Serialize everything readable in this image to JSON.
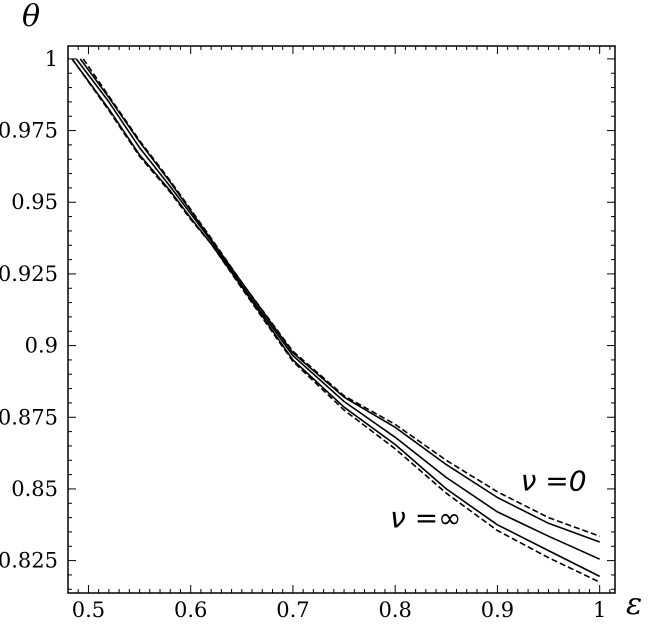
{
  "chart_data": {
    "type": "line",
    "title": "",
    "xlabel": "ε",
    "ylabel": "θ",
    "xlim": [
      0.48,
      1.015
    ],
    "ylim": [
      0.8137,
      1.0045
    ],
    "xticks": [
      0.5,
      0.6,
      0.7,
      0.8,
      0.9,
      1.0
    ],
    "xtick_labels": [
      "0.5",
      "0.6",
      "0.7",
      "0.8",
      "0.9",
      "1"
    ],
    "yticks": [
      0.825,
      0.85,
      0.875,
      0.9,
      0.925,
      0.95,
      0.975,
      1.0
    ],
    "ytick_labels": [
      "0.825",
      "0.85",
      "0.875",
      "0.9",
      "0.925",
      "0.95",
      "0.975",
      "1"
    ],
    "grid": false,
    "legend": "none",
    "annotations": [
      {
        "text": "ν =0",
        "x": 0.955,
        "y": 0.8495
      },
      {
        "text": "ν =∞",
        "x": 0.83,
        "y": 0.8365
      }
    ],
    "series": [
      {
        "style": "dashed",
        "x": [
          0.495,
          0.52,
          0.55,
          0.58,
          0.6,
          0.62,
          0.65,
          0.7,
          0.75,
          0.8,
          0.85,
          0.9,
          0.95,
          1.0
        ],
        "y": [
          1.0,
          0.987,
          0.9715,
          0.9575,
          0.9475,
          0.9375,
          0.922,
          0.898,
          0.8825,
          0.8725,
          0.86,
          0.849,
          0.84,
          0.8335
        ]
      },
      {
        "style": "solid",
        "x": [
          0.492,
          0.52,
          0.55,
          0.58,
          0.6,
          0.62,
          0.65,
          0.7,
          0.75,
          0.8,
          0.85,
          0.9,
          0.95,
          1.0
        ],
        "y": [
          1.0,
          0.9865,
          0.971,
          0.957,
          0.947,
          0.937,
          0.922,
          0.8975,
          0.882,
          0.8715,
          0.8585,
          0.847,
          0.838,
          0.8315
        ]
      },
      {
        "style": "solid",
        "x": [
          0.488,
          0.52,
          0.55,
          0.58,
          0.6,
          0.62,
          0.65,
          0.7,
          0.75,
          0.8,
          0.85,
          0.9,
          0.95,
          1.0
        ],
        "y": [
          1.0,
          0.985,
          0.969,
          0.9555,
          0.946,
          0.9365,
          0.921,
          0.8965,
          0.8805,
          0.868,
          0.854,
          0.842,
          0.8335,
          0.8255
        ]
      },
      {
        "style": "solid",
        "x": [
          0.484,
          0.52,
          0.55,
          0.58,
          0.6,
          0.62,
          0.65,
          0.7,
          0.75,
          0.8,
          0.85,
          0.9,
          0.95,
          1.0
        ],
        "y": [
          1.0,
          0.9825,
          0.9665,
          0.954,
          0.9445,
          0.9355,
          0.9205,
          0.895,
          0.8785,
          0.8655,
          0.85,
          0.8375,
          0.8285,
          0.8195
        ]
      },
      {
        "style": "dashed",
        "x": [
          0.484,
          0.52,
          0.55,
          0.58,
          0.6,
          0.62,
          0.65,
          0.7,
          0.75,
          0.8,
          0.85,
          0.9,
          0.95,
          1.0
        ],
        "y": [
          1.0,
          0.982,
          0.966,
          0.9535,
          0.944,
          0.9355,
          0.92,
          0.8945,
          0.8775,
          0.864,
          0.8485,
          0.8355,
          0.826,
          0.8175
        ]
      }
    ]
  }
}
